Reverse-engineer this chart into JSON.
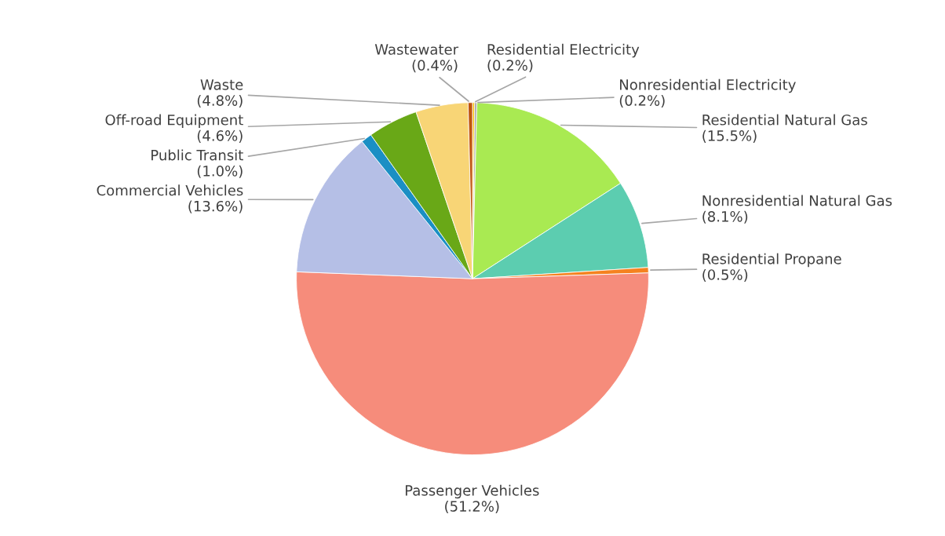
{
  "chart_data": {
    "type": "pie",
    "categories": [
      "Residential Electricity",
      "Nonresidential Electricity",
      "Residential Natural Gas",
      "Nonresidential Natural Gas",
      "Residential Propane",
      "Passenger Vehicles",
      "Commercial Vehicles",
      "Public Transit",
      "Off-road Equipment",
      "Waste",
      "Wastewater"
    ],
    "values": [
      0.2,
      0.2,
      15.5,
      8.1,
      0.5,
      51.2,
      13.6,
      1.0,
      4.6,
      4.8,
      0.4
    ],
    "value_labels": [
      "(0.2%)",
      "(0.2%)",
      "(15.5%)",
      "(8.1%)",
      "(0.5%)",
      "(51.2%)",
      "(13.6%)",
      "(1.0%)",
      "(4.6%)",
      "(4.8%)",
      "(0.4%)"
    ],
    "colors": [
      "#ffc000",
      "#a5a5a5",
      "#a9ea52",
      "#5ccdb0",
      "#f5821f",
      "#f68c7b",
      "#b5bfe6",
      "#1b8fc4",
      "#69a817",
      "#f8d576",
      "#c0550f"
    ],
    "legend": false
  }
}
